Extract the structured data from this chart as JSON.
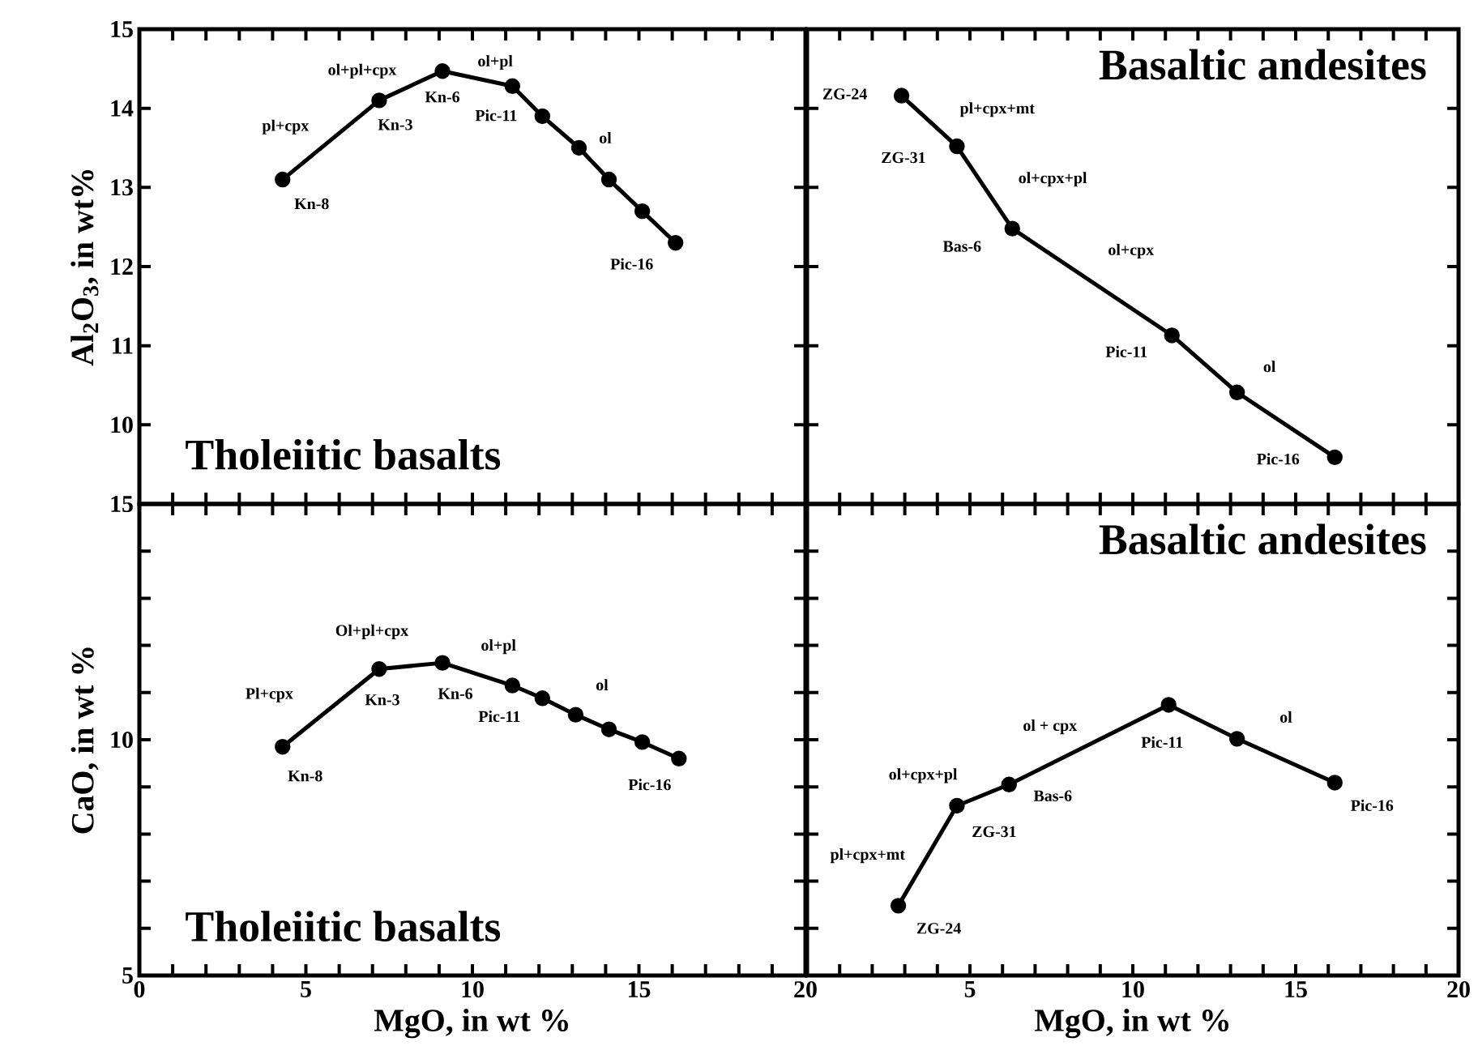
{
  "chart_data": [
    {
      "type": "line",
      "title": "Tholeiitic basalts",
      "ylabel": "Al$_{2}$O$_{3}$, in wt%",
      "x": [
        4.3,
        7.2,
        9.1,
        11.2,
        12.1,
        13.2,
        14.1,
        15.1,
        16.1
      ],
      "series": [
        {
          "color": "#000000",
          "values": [
            13.1,
            14.1,
            14.47,
            14.28,
            13.9,
            13.5,
            13.1,
            12.7,
            12.3
          ]
        }
      ],
      "marker": "circle",
      "line_style": "solid",
      "xlim": [
        0,
        20
      ],
      "ylim": [
        9,
        15
      ],
      "xticks": [
        0,
        {
          "value": 1,
          "label": null
        },
        {
          "value": 2,
          "label": null
        },
        {
          "value": 3,
          "label": null
        },
        {
          "value": 4,
          "label": null
        },
        5,
        {
          "value": 6,
          "label": null
        },
        {
          "value": 7,
          "label": null
        },
        {
          "value": 8,
          "label": null
        },
        {
          "value": 9,
          "label": null
        },
        10,
        {
          "value": 11,
          "label": null
        },
        {
          "value": 12,
          "label": null
        },
        {
          "value": 13,
          "label": null
        },
        {
          "value": 14,
          "label": null
        },
        15,
        {
          "value": 16,
          "label": null
        },
        {
          "value": 17,
          "label": null
        },
        {
          "value": 18,
          "label": null
        },
        {
          "value": 19,
          "label": null
        },
        20
      ],
      "yticks": [
        {
          "value": 9,
          "label": null
        },
        10,
        11,
        12,
        13,
        14,
        15
      ],
      "tick_labels": "y",
      "annotations": [
        {
          "text": "Kn-8",
          "x": 4.3,
          "y": 13.1
        },
        {
          "text": "Kn-3",
          "x": 7.2,
          "y": 14.1
        },
        {
          "text": "Kn-6",
          "x": 9.1,
          "y": 14.47
        },
        {
          "text": "Pic-11",
          "x": 11.2,
          "y": 14.28
        },
        {
          "text": "Pic-16",
          "x": 16.1,
          "y": 12.3
        },
        {
          "text": "pl+cpx",
          "x": 5.75,
          "y": 13.6
        },
        {
          "text": "ol+pl+cpx",
          "x": 8.15,
          "y": 14.285
        },
        {
          "text": "ol+pl",
          "x": 10.15,
          "y": 14.375
        },
        {
          "text": "ol",
          "x": 13.65,
          "y": 13.3
        }
      ]
    },
    {
      "type": "line",
      "title": "Basaltic andesites",
      "x": [
        2.9,
        4.6,
        6.3,
        11.2,
        13.2,
        16.2
      ],
      "series": [
        {
          "color": "#000000",
          "values": [
            14.16,
            13.52,
            12.48,
            11.13,
            10.41,
            9.59
          ]
        }
      ],
      "marker": "circle",
      "line_style": "solid",
      "xlim": [
        0,
        20
      ],
      "ylim": [
        9,
        15
      ],
      "xticks": [
        0,
        {
          "value": 1,
          "label": null
        },
        {
          "value": 2,
          "label": null
        },
        {
          "value": 3,
          "label": null
        },
        {
          "value": 4,
          "label": null
        },
        5,
        {
          "value": 6,
          "label": null
        },
        {
          "value": 7,
          "label": null
        },
        {
          "value": 8,
          "label": null
        },
        {
          "value": 9,
          "label": null
        },
        10,
        {
          "value": 11,
          "label": null
        },
        {
          "value": 12,
          "label": null
        },
        {
          "value": 13,
          "label": null
        },
        {
          "value": 14,
          "label": null
        },
        15,
        {
          "value": 16,
          "label": null
        },
        {
          "value": 17,
          "label": null
        },
        {
          "value": 18,
          "label": null
        },
        {
          "value": 19,
          "label": null
        },
        20
      ],
      "yticks": [
        9,
        10,
        11,
        12,
        13,
        14,
        15
      ],
      "tick_labels": false,
      "annotations": [
        {
          "text": "ZG-24",
          "x": 2.9,
          "y": 14.16
        },
        {
          "text": "ZG-31",
          "x": 4.6,
          "y": 13.52
        },
        {
          "text": "Bas-6",
          "x": 6.3,
          "y": 12.48
        },
        {
          "text": "Pic-11",
          "x": 11.2,
          "y": 11.13
        },
        {
          "text": "Pic-16",
          "x": 16.2,
          "y": 9.59
        },
        {
          "text": "pl+cpx+mt",
          "x": 3.75,
          "y": 13.84
        },
        {
          "text": "ol+cpx+pl",
          "x": 5.45,
          "y": 13.0
        },
        {
          "text": "ol+cpx",
          "x": 8.75,
          "y": 11.805
        },
        {
          "text": "ol",
          "x": 13.2,
          "y": 10.41
        }
      ]
    },
    {
      "type": "line",
      "title": "Tholeiitic basalts",
      "xlabel": "MgO, in wt %",
      "ylabel": "CaO, in wt %",
      "x": [
        4.3,
        7.2,
        9.1,
        11.2,
        12.1,
        13.1,
        14.1,
        15.1,
        16.2
      ],
      "series": [
        {
          "color": "#000000",
          "values": [
            9.85,
            11.5,
            11.63,
            11.15,
            10.88,
            10.53,
            10.22,
            9.95,
            9.6
          ]
        }
      ],
      "marker": "circle",
      "line_style": "solid",
      "xlim": [
        0,
        20
      ],
      "ylim": [
        5,
        15
      ],
      "xticks": [
        0,
        {
          "value": 1,
          "label": null
        },
        {
          "value": 2,
          "label": null
        },
        {
          "value": 3,
          "label": null
        },
        {
          "value": 4,
          "label": null
        },
        5,
        {
          "value": 6,
          "label": null
        },
        {
          "value": 7,
          "label": null
        },
        {
          "value": 8,
          "label": null
        },
        {
          "value": 9,
          "label": null
        },
        10,
        {
          "value": 11,
          "label": null
        },
        {
          "value": 12,
          "label": null
        },
        {
          "value": 13,
          "label": null
        },
        {
          "value": 14,
          "label": null
        },
        15,
        {
          "value": 16,
          "label": null
        },
        {
          "value": 17,
          "label": null
        },
        {
          "value": 18,
          "label": null
        },
        {
          "value": 19,
          "label": null
        },
        20
      ],
      "yticks": [
        5,
        {
          "value": 6,
          "label": null
        },
        {
          "value": 7,
          "label": null
        },
        {
          "value": 8,
          "label": null
        },
        {
          "value": 9,
          "label": null
        },
        10,
        {
          "value": 11,
          "label": null
        },
        {
          "value": 12,
          "label": null
        },
        {
          "value": 13,
          "label": null
        },
        {
          "value": 14,
          "label": null
        },
        15
      ],
      "annotations": [
        {
          "text": "Kn-8",
          "x": 4.3,
          "y": 9.85
        },
        {
          "text": "Kn-3",
          "x": 7.2,
          "y": 11.5
        },
        {
          "text": "Kn-6",
          "x": 9.1,
          "y": 11.63
        },
        {
          "text": "Pic-11",
          "x": 11.2,
          "y": 11.15
        },
        {
          "text": "Pic-16",
          "x": 16.2,
          "y": 9.6
        },
        {
          "text": "Pl+cpx",
          "x": 5.75,
          "y": 10.675
        },
        {
          "text": "Ol+pl+cpx",
          "x": 8.15,
          "y": 11.565
        },
        {
          "text": "ol+pl",
          "x": 10.15,
          "y": 11.39
        },
        {
          "text": "ol",
          "x": 13.6,
          "y": 10.375
        }
      ]
    },
    {
      "type": "line",
      "title": "Basaltic andesites",
      "xlabel": "MgO, in wt %",
      "x": [
        2.8,
        4.6,
        6.2,
        11.1,
        13.2,
        16.2
      ],
      "series": [
        {
          "color": "#000000",
          "values": [
            6.48,
            8.6,
            9.05,
            10.74,
            10.02,
            9.09
          ]
        }
      ],
      "marker": "circle",
      "line_style": "solid",
      "xlim": [
        0,
        20
      ],
      "ylim": [
        5,
        15
      ],
      "xticks": [
        {
          "value": 0,
          "label": null
        },
        {
          "value": 1,
          "label": null
        },
        {
          "value": 2,
          "label": null
        },
        {
          "value": 3,
          "label": null
        },
        {
          "value": 4,
          "label": null
        },
        5,
        {
          "value": 6,
          "label": null
        },
        {
          "value": 7,
          "label": null
        },
        {
          "value": 8,
          "label": null
        },
        {
          "value": 9,
          "label": null
        },
        10,
        {
          "value": 11,
          "label": null
        },
        {
          "value": 12,
          "label": null
        },
        {
          "value": 13,
          "label": null
        },
        {
          "value": 14,
          "label": null
        },
        15,
        {
          "value": 16,
          "label": null
        },
        {
          "value": 17,
          "label": null
        },
        {
          "value": 18,
          "label": null
        },
        {
          "value": 19,
          "label": null
        },
        20
      ],
      "yticks": [
        5,
        6,
        7,
        8,
        9,
        10,
        11,
        12,
        13,
        14,
        15
      ],
      "tick_labels": "x",
      "annotations": [
        {
          "text": "ZG-24",
          "x": 2.8,
          "y": 6.48
        },
        {
          "text": "ZG-31",
          "x": 4.6,
          "y": 8.6
        },
        {
          "text": "Bas-6",
          "x": 6.2,
          "y": 9.05
        },
        {
          "text": "Pic-11",
          "x": 11.1,
          "y": 10.74
        },
        {
          "text": "Pic-16",
          "x": 16.2,
          "y": 9.09
        },
        {
          "text": "pl+cpx+mt",
          "x": 3.7,
          "y": 7.54
        },
        {
          "text": "ol+cpx+pl",
          "x": 5.4,
          "y": 8.825
        },
        {
          "text": "ol + cpx",
          "x": 8.65,
          "y": 9.895
        },
        {
          "text": "ol",
          "x": 14.7,
          "y": 9.555
        }
      ]
    }
  ]
}
